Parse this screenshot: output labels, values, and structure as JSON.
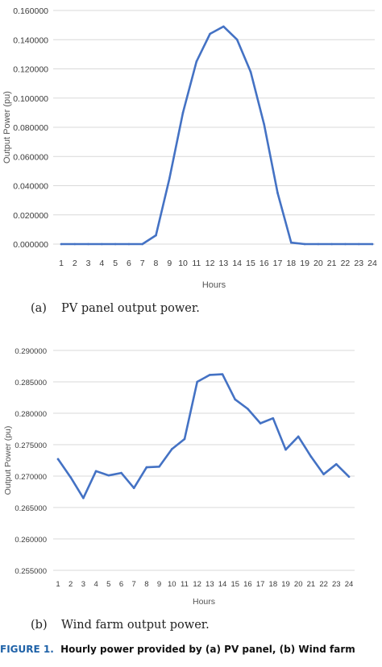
{
  "chart_data": [
    {
      "type": "line",
      "caption_tag": "(a)",
      "caption": "PV panel output power.",
      "title": "",
      "xlabel": "Hours",
      "ylabel": "Output Power (pu)",
      "x": [
        1,
        2,
        3,
        4,
        5,
        6,
        7,
        8,
        9,
        10,
        11,
        12,
        13,
        14,
        15,
        16,
        17,
        18,
        19,
        20,
        21,
        22,
        23,
        24
      ],
      "series": [
        {
          "values": [
            0,
            0,
            0,
            0,
            0,
            0,
            0,
            0.006,
            0.045,
            0.09,
            0.125,
            0.144,
            0.149,
            0.14,
            0.118,
            0.082,
            0.035,
            0.001,
            0,
            0,
            0,
            0,
            0,
            0
          ]
        }
      ],
      "ylim": [
        0,
        0.16
      ],
      "yticks": [
        "0.000000",
        "0.020000",
        "0.040000",
        "0.060000",
        "0.080000",
        "0.100000",
        "0.120000",
        "0.140000",
        "0.160000"
      ],
      "grid": true,
      "color": "#4472c4"
    },
    {
      "type": "line",
      "caption_tag": "(b)",
      "caption": "Wind farm output power.",
      "title": "",
      "xlabel": "Hours",
      "ylabel": "Output Power (pu)",
      "x": [
        1,
        2,
        3,
        4,
        5,
        6,
        7,
        8,
        9,
        10,
        11,
        12,
        13,
        14,
        15,
        16,
        17,
        18,
        19,
        20,
        21,
        22,
        23,
        24
      ],
      "series": [
        {
          "values": [
            0.2727,
            0.2698,
            0.2665,
            0.2708,
            0.2701,
            0.2705,
            0.2681,
            0.2714,
            0.2715,
            0.2743,
            0.2759,
            0.285,
            0.2861,
            0.2862,
            0.2822,
            0.2807,
            0.2784,
            0.2792,
            0.2742,
            0.2763,
            0.2731,
            0.2703,
            0.2719,
            0.2699
          ]
        }
      ],
      "ylim": [
        0.255,
        0.29
      ],
      "yticks": [
        "0.255000",
        "0.260000",
        "0.265000",
        "0.270000",
        "0.275000",
        "0.280000",
        "0.285000",
        "0.290000"
      ],
      "grid": true,
      "color": "#4472c4"
    }
  ],
  "figure_caption": {
    "label": "FIGURE 1.",
    "text": "Hourly power provided by (a) PV panel, (b) Wind farm"
  }
}
